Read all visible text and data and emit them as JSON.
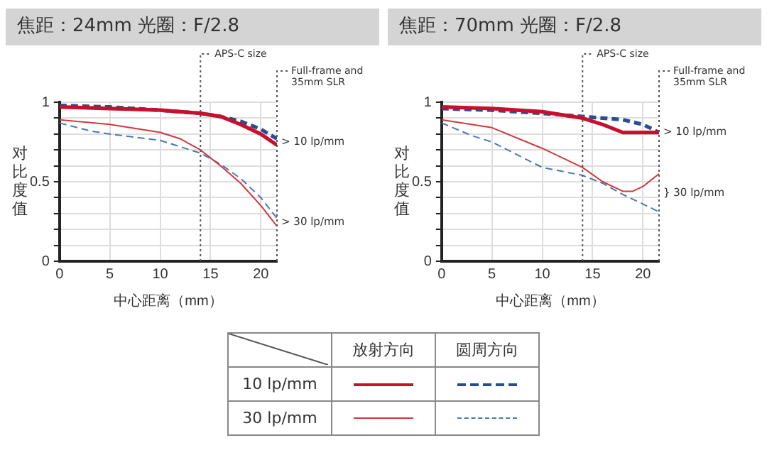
{
  "chart_data": [
    {
      "type": "line",
      "title": "焦距：24mm  光圈：F/2.8",
      "xlabel": "中心距离（mm）",
      "ylabel": "对比度值",
      "xlim": [
        0,
        21.6
      ],
      "xticks": [
        0,
        5,
        10,
        15,
        20
      ],
      "ylim": [
        0,
        1
      ],
      "yticks": [
        0,
        {
          "value": 0.1,
          "label": null
        },
        {
          "value": 0.2,
          "label": null
        },
        {
          "value": 0.3,
          "label": null
        },
        {
          "value": 0.4,
          "label": null
        },
        0.5,
        {
          "value": 0.6,
          "label": null
        },
        {
          "value": 0.7,
          "label": null
        },
        {
          "value": 0.8,
          "label": null
        },
        {
          "value": 0.9,
          "label": null
        },
        1
      ],
      "grid": true,
      "marker": "none",
      "series": [
        {
          "color": "#c8102e",
          "line_style": "solid",
          "x": [
            0,
            5,
            10,
            14,
            16,
            18,
            20,
            21.6
          ],
          "values": [
            0.97,
            0.96,
            0.95,
            0.93,
            0.91,
            0.86,
            0.8,
            0.73
          ]
        },
        {
          "color": "#2a4d8f",
          "line_style": "dashed",
          "x": [
            0,
            5,
            10,
            14,
            16,
            18,
            20,
            21.6
          ],
          "values": [
            0.98,
            0.97,
            0.95,
            0.93,
            0.91,
            0.88,
            0.83,
            0.77
          ]
        },
        {
          "color": "#d0393e",
          "line_style": "solid",
          "x": [
            0,
            5,
            10,
            12,
            14,
            16,
            18,
            20,
            21.6
          ],
          "values": [
            0.89,
            0.86,
            0.81,
            0.77,
            0.7,
            0.6,
            0.49,
            0.35,
            0.22
          ]
        },
        {
          "color": "#4a7ab0",
          "line_style": "dashed",
          "x": [
            0,
            3,
            5,
            10,
            14,
            16,
            18,
            20,
            21.6
          ],
          "values": [
            0.87,
            0.82,
            0.8,
            0.76,
            0.68,
            0.61,
            0.52,
            0.4,
            0.27
          ]
        }
      ],
      "ref_lines": [
        {
          "axis": "x",
          "value": 14,
          "label": "APS-C size",
          "color": "#555555",
          "line_style": "dotted"
        },
        {
          "axis": "x",
          "value": 21.6,
          "label": "Full-frame and 35mm SLR",
          "color": "#555555",
          "line_style": "dotted"
        }
      ],
      "annotations": [
        "> 10 lp/mm",
        "> 30 lp/mm"
      ]
    },
    {
      "type": "line",
      "title": "焦距：70mm  光圈：F/2.8",
      "xlabel": "中心距离（mm）",
      "ylabel": "对比度值",
      "xlim": [
        0,
        21.6
      ],
      "xticks": [
        0,
        5,
        10,
        15,
        20
      ],
      "ylim": [
        0,
        1
      ],
      "yticks": [
        0,
        {
          "value": 0.1,
          "label": null
        },
        {
          "value": 0.2,
          "label": null
        },
        {
          "value": 0.3,
          "label": null
        },
        {
          "value": 0.4,
          "label": null
        },
        0.5,
        {
          "value": 0.6,
          "label": null
        },
        {
          "value": 0.7,
          "label": null
        },
        {
          "value": 0.8,
          "label": null
        },
        {
          "value": 0.9,
          "label": null
        },
        1
      ],
      "grid": true,
      "marker": "none",
      "series": [
        {
          "color": "#c8102e",
          "line_style": "solid",
          "x": [
            0,
            5,
            10,
            14,
            16,
            18,
            20,
            21.6
          ],
          "values": [
            0.97,
            0.96,
            0.94,
            0.9,
            0.86,
            0.81,
            0.81,
            0.81
          ]
        },
        {
          "color": "#2a4d8f",
          "line_style": "dashed",
          "x": [
            0,
            5,
            10,
            14,
            16,
            18,
            20,
            21.6
          ],
          "values": [
            0.96,
            0.95,
            0.93,
            0.91,
            0.9,
            0.89,
            0.86,
            0.81
          ]
        },
        {
          "color": "#d0393e",
          "line_style": "solid",
          "x": [
            0,
            5,
            10,
            14,
            16,
            18,
            19,
            20,
            21.6
          ],
          "values": [
            0.89,
            0.84,
            0.71,
            0.59,
            0.5,
            0.44,
            0.44,
            0.47,
            0.55
          ]
        },
        {
          "color": "#4a7ab0",
          "line_style": "dashed",
          "x": [
            0,
            3,
            5,
            10,
            14,
            16,
            18,
            20,
            21.6
          ],
          "values": [
            0.87,
            0.79,
            0.75,
            0.59,
            0.54,
            0.49,
            0.42,
            0.36,
            0.31
          ]
        }
      ],
      "ref_lines": [
        {
          "axis": "x",
          "value": 14,
          "label": "APS-C size",
          "color": "#555555",
          "line_style": "dotted"
        },
        {
          "axis": "x",
          "value": 21.6,
          "label": "Full-frame and 35mm SLR",
          "color": "#555555",
          "line_style": "dotted"
        }
      ],
      "annotations": [
        "> 10 lp/mm",
        "} 30 lp/mm"
      ]
    },
    {
      "type": "other",
      "annotations": [
        "放射方向",
        "圆周方向",
        "10 lp/mm",
        "30 lp/mm"
      ]
    }
  ]
}
